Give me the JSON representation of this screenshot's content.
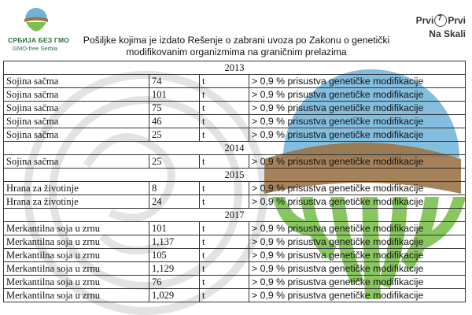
{
  "header": {
    "logo_left_line1": "СРБИЈА БЕЗ ГМО",
    "logo_left_line2": "GMO-free Serbia",
    "title": "Pošiljke kojima je izdato Rešenje o zabrani uvoza po Zakonu o genetički modifikovanim organizmima na graničnim prelazima",
    "logo_right_top_left": "Prvi",
    "logo_right_top_right": "Prvi",
    "logo_right_bottom": "Na Skali"
  },
  "colors": {
    "logo_green": "#2c6e3a",
    "watermark_blue": "#6fb3d8",
    "watermark_brown": "#9b7447",
    "watermark_green": "#7cc04e"
  },
  "table": {
    "sections": [
      {
        "year": "2013",
        "rows": [
          {
            "product": "Sojina sačma",
            "qty": "74",
            "unit": "t",
            "note": "> 0,9 % prisustva genetičke modifikacije"
          },
          {
            "product": "Sojina sačma",
            "qty": "101",
            "unit": "t",
            "note": "> 0,9 % prisustva genetičke modifikacije"
          },
          {
            "product": "Sojina sačma",
            "qty": "75",
            "unit": "t",
            "note": "> 0,9 % prisustva genetičke modifikacije"
          },
          {
            "product": "Sojina sačma",
            "qty": "46",
            "unit": "t",
            "note": "> 0,9 % prisustva genetičke modifikacije"
          },
          {
            "product": "Sojina sačma",
            "qty": "25",
            "unit": "t",
            "note": "> 0,9 % prisustva genetičke modifikacije"
          }
        ]
      },
      {
        "year": "2014",
        "rows": [
          {
            "product": "Sojina sačma",
            "qty": "25",
            "unit": "t",
            "note": "> 0,9 % prisustva genetičke modifikacije"
          }
        ]
      },
      {
        "year": "2015",
        "rows": [
          {
            "product": "Hrana za životinje",
            "qty": "8",
            "unit": "t",
            "note": "> 0,9 % prisustva genetičke modifikacije"
          },
          {
            "product": "Hrana za životinje",
            "qty": "24",
            "unit": "t",
            "note": "> 0,9 % prisustva genetičke modifikacije"
          }
        ]
      },
      {
        "year": "2017",
        "rows": [
          {
            "product": "Merkantilna soja u zrnu",
            "qty": "101",
            "unit": "t",
            "note": "> 0,9 % prisustva genetičke modifikacije"
          },
          {
            "product": "Merkantilna soja u zrnu",
            "qty": "1,137",
            "unit": "t",
            "note": "> 0,9 % prisustva genetičke modifikacije"
          },
          {
            "product": "Merkantilna soja u zrnu",
            "qty": "105",
            "unit": "t",
            "note": "> 0,9 % prisustva genetičke modifikacije"
          },
          {
            "product": "Merkantilna soja u zrnu",
            "qty": "1,129",
            "unit": "t",
            "note": "> 0,9 % prisustva genetičke modifikacije"
          },
          {
            "product": "Merkantilna soja u zrnu",
            "qty": "76",
            "unit": "t",
            "note": "> 0,9 % prisustva genetičke modifikacije"
          },
          {
            "product": "Merkantilna soja u zrnu",
            "qty": "1,029",
            "unit": "t",
            "note": "> 0,9 % prisustva genetičke modifikacije"
          }
        ]
      }
    ]
  }
}
